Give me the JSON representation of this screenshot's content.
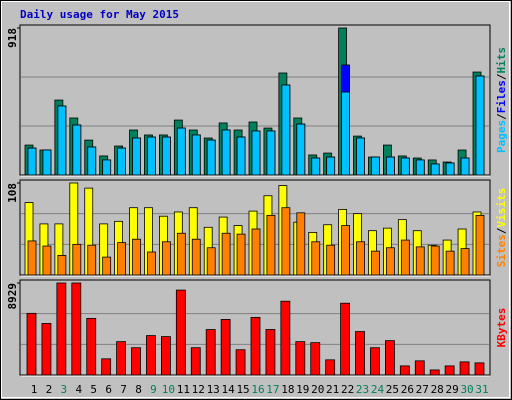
{
  "title": "Daily usage for May 2015",
  "legend_separator": "/",
  "chart_data": [
    {
      "type": "bar",
      "ylim": [
        0,
        918
      ],
      "yticks": [
        918
      ],
      "series": [
        {
          "name": "Hits",
          "color": "#00805c",
          "values": [
            187,
            156,
            468,
            356,
            218,
            119,
            181,
            281,
            250,
            250,
            343,
            281,
            231,
            325,
            281,
            331,
            293,
            637,
            356,
            125,
            137,
            918,
            243,
            112,
            187,
            119,
            106,
            94,
            81,
            156,
            643
          ]
        },
        {
          "name": "Files",
          "color": "#0000ff",
          "values": [
            168,
            156,
            431,
            312,
            175,
            94,
            168,
            231,
            237,
            237,
            293,
            250,
            218,
            281,
            237,
            275,
            275,
            562,
            318,
            106,
            112,
            687,
            231,
            112,
            112,
            106,
            94,
            69,
            75,
            106,
            618
          ]
        },
        {
          "name": "Pages",
          "color": "#00c0ff",
          "values": [
            168,
            156,
            431,
            312,
            175,
            94,
            168,
            231,
            237,
            237,
            293,
            250,
            218,
            281,
            237,
            275,
            275,
            562,
            318,
            106,
            112,
            518,
            231,
            112,
            112,
            106,
            94,
            69,
            75,
            106,
            618
          ]
        }
      ]
    },
    {
      "type": "bar",
      "ylim": [
        0,
        108
      ],
      "yticks": [
        108
      ],
      "series": [
        {
          "name": "Visits",
          "color": "#ffff00",
          "values": [
            85,
            60,
            60,
            108,
            102,
            60,
            63,
            79,
            79,
            69,
            74,
            79,
            56,
            68,
            58,
            75,
            93,
            105,
            62,
            50,
            59,
            77,
            72,
            52,
            55,
            65,
            52,
            35,
            41,
            54,
            74
          ]
        },
        {
          "name": "Sites",
          "color": "#ff8000",
          "values": [
            40,
            34,
            23,
            36,
            35,
            21,
            38,
            42,
            27,
            39,
            49,
            42,
            32,
            49,
            48,
            54,
            70,
            79,
            73,
            39,
            35,
            58,
            39,
            28,
            32,
            41,
            33,
            34,
            28,
            31,
            70
          ]
        }
      ]
    },
    {
      "type": "bar",
      "ylim": [
        0,
        8929
      ],
      "yticks": [
        8929
      ],
      "categories": [
        "1",
        "2",
        "3",
        "4",
        "5",
        "6",
        "7",
        "8",
        "9",
        "10",
        "11",
        "12",
        "13",
        "14",
        "15",
        "16",
        "17",
        "18",
        "19",
        "20",
        "21",
        "22",
        "23",
        "24",
        "25",
        "26",
        "27",
        "28",
        "29",
        "30",
        "31"
      ],
      "category_colors": [
        "#000000",
        "#000000",
        "#00805c",
        "#000000",
        "#000000",
        "#000000",
        "#000000",
        "#000000",
        "#00805c",
        "#00805c",
        "#000000",
        "#000000",
        "#000000",
        "#000000",
        "#000000",
        "#00805c",
        "#00805c",
        "#000000",
        "#000000",
        "#000000",
        "#000000",
        "#000000",
        "#00805c",
        "#00805c",
        "#000000",
        "#000000",
        "#000000",
        "#000000",
        "#000000",
        "#00805c",
        "#00805c"
      ],
      "series": [
        {
          "name": "KBytes",
          "color": "#ff0000",
          "values": [
            5985,
            5003,
            8929,
            8929,
            5494,
            1570,
            3238,
            2649,
            3826,
            3728,
            8242,
            2649,
            4415,
            5396,
            2453,
            5592,
            4415,
            7162,
            3238,
            3140,
            1472,
            6966,
            4219,
            2649,
            3336,
            883,
            1374,
            491,
            883,
            1275,
            1177
          ]
        }
      ]
    }
  ]
}
